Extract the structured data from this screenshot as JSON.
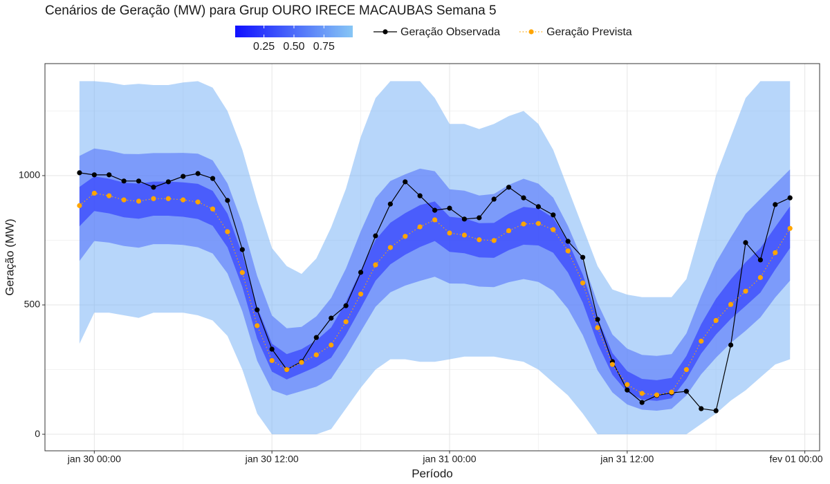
{
  "chart_data": {
    "type": "fan",
    "title": "Cenários de Geração (MW) para Grup OURO IRECE MACAUBAS Semana 5",
    "x_label": "Período",
    "y_label": "Geração (MW)",
    "xlim": [
      "jan 29 20:40",
      "fev 01 01:00"
    ],
    "xticks": [
      "jan 30 00:00",
      "jan 30 12:00",
      "jan 31 00:00",
      "jan 31 12:00",
      "fev 01 00:00"
    ],
    "ylim": [
      -64,
      1433
    ],
    "yticks": [
      0,
      500,
      1000
    ],
    "grid": true,
    "x": [
      "jan 29 23:00",
      "jan 30 00:00",
      "jan 30 01:00",
      "jan 30 02:00",
      "jan 30 03:00",
      "jan 30 04:00",
      "jan 30 05:00",
      "jan 30 06:00",
      "jan 30 07:00",
      "jan 30 08:00",
      "jan 30 09:00",
      "jan 30 10:00",
      "jan 30 11:00",
      "jan 30 12:00",
      "jan 30 13:00",
      "jan 30 14:00",
      "jan 30 15:00",
      "jan 30 16:00",
      "jan 30 17:00",
      "jan 30 18:00",
      "jan 30 19:00",
      "jan 30 20:00",
      "jan 30 21:00",
      "jan 30 22:00",
      "jan 30 23:00",
      "jan 31 00:00",
      "jan 31 01:00",
      "jan 31 02:00",
      "jan 31 03:00",
      "jan 31 04:00",
      "jan 31 05:00",
      "jan 31 06:00",
      "jan 31 07:00",
      "jan 31 08:00",
      "jan 31 09:00",
      "jan 31 10:00",
      "jan 31 11:00",
      "jan 31 12:00",
      "jan 31 13:00",
      "jan 31 14:00",
      "jan 31 15:00",
      "jan 31 16:00",
      "jan 31 17:00",
      "jan 31 18:00",
      "jan 31 19:00",
      "jan 31 20:00",
      "jan 31 21:00",
      "jan 31 22:00",
      "jan 31 23:00"
    ],
    "colorscale": {
      "lim": [
        0.01,
        0.99
      ],
      "ticks": [
        0.25,
        {
          "value": 0.5,
          "label": "0.50"
        },
        0.75
      ],
      "colors": [
        "#1010ff",
        "#87c6f5"
      ]
    },
    "bands": [
      {
        "level": 0.9,
        "upper": [
          1365,
          1365,
          1360,
          1350,
          1355,
          1350,
          1350,
          1360,
          1365,
          1340,
          1250,
          1100,
          900,
          720,
          650,
          620,
          680,
          800,
          950,
          1150,
          1300,
          1365,
          1365,
          1365,
          1300,
          1200,
          1200,
          1180,
          1200,
          1230,
          1250,
          1200,
          1100,
          950,
          800,
          650,
          560,
          540,
          530,
          530,
          530,
          600,
          800,
          1000,
          1150,
          1300,
          1365,
          1365,
          1365
        ],
        "lower": [
          350,
          470,
          470,
          460,
          450,
          470,
          470,
          470,
          460,
          440,
          380,
          250,
          80,
          0,
          0,
          0,
          0,
          20,
          100,
          180,
          250,
          290,
          290,
          280,
          280,
          290,
          300,
          300,
          300,
          290,
          280,
          250,
          200,
          150,
          80,
          0,
          0,
          0,
          0,
          0,
          0,
          0,
          40,
          80,
          130,
          170,
          220,
          270,
          290
        ]
      },
      {
        "level": 0.5,
        "upper": [
          1076,
          1105,
          1097,
          1084,
          1083,
          1087,
          1087,
          1088,
          1085,
          1059,
          970,
          815,
          612,
          459,
          410,
          415,
          456,
          527,
          641,
          785,
          913,
          979,
          1005,
          1027,
          1017,
          947,
          942,
          923,
          929,
          964,
          988,
          969,
          915,
          805,
          671,
          507,
          386,
          331,
          307,
          303,
          310,
          390,
          536,
          664,
          761,
          852,
          910,
          967,
          1024
        ],
        "lower": [
          670,
          747,
          741,
          728,
          721,
          735,
          735,
          732,
          723,
          699,
          622,
          475,
          284,
          171,
          150,
          167,
          184,
          215,
          301,
          397,
          493,
          549,
          575,
          593,
          609,
          583,
          582,
          571,
          569,
          588,
          600,
          589,
          555,
          485,
          383,
          247,
          162,
          115,
          95,
          91,
          98,
          150,
          232,
          296,
          353,
          400,
          452,
          529,
          594
        ]
      },
      {
        "level": 0.15,
        "upper": [
          956,
          997,
          988,
          973,
          969,
          977,
          977,
          974,
          968,
          941,
          853,
          696,
          492,
          350,
          310,
          329,
          363,
          413,
          512,
          633,
          752,
          818,
          855,
          886,
          900,
          841,
          835,
          816,
          817,
          853,
          879,
          873,
          837,
          745,
          617,
          448,
          314,
          244,
          214,
          209,
          218,
          303,
          426,
          524,
          599,
          665,
          720,
          801,
          881
        ],
        "lower": [
          804,
          863,
          854,
          839,
          833,
          845,
          845,
          841,
          832,
          806,
          723,
          569,
          369,
          242,
          212,
          236,
          261,
          296,
          385,
          488,
          594,
          657,
          694,
          724,
          747,
          705,
          700,
          684,
          682,
          712,
          733,
          730,
          702,
          625,
          509,
          350,
          230,
          163,
          134,
          129,
          139,
          213,
          312,
          386,
          446,
          496,
          548,
          637,
          720
        ]
      }
    ],
    "series": [
      {
        "name": "Geração Observada",
        "color": "#000000",
        "style": "solid",
        "values": [
          1011,
          1003,
          1003,
          979,
          979,
          955,
          976,
          997,
          1008,
          989,
          904,
          714,
          481,
          329,
          250,
          281,
          374,
          449,
          497,
          626,
          767,
          890,
          976,
          922,
          866,
          874,
          832,
          837,
          909,
          955,
          914,
          880,
          848,
          746,
          684,
          444,
          281,
          171,
          123,
          150,
          160,
          166,
          99,
          91,
          345,
          741,
          674,
          888,
          914
        ]
      },
      {
        "name": "Geração Prevista",
        "color": "#ffa500",
        "style": "dotted",
        "values": [
          884,
          932,
          922,
          906,
          901,
          911,
          911,
          906,
          898,
          871,
          783,
          625,
          420,
          285,
          250,
          278,
          307,
          345,
          435,
          542,
          655,
          722,
          765,
          802,
          829,
          778,
          770,
          752,
          749,
          787,
          813,
          815,
          791,
          709,
          585,
          412,
          270,
          192,
          158,
          152,
          163,
          250,
          360,
          440,
          502,
          553,
          606,
          702,
          796
        ]
      }
    ]
  }
}
